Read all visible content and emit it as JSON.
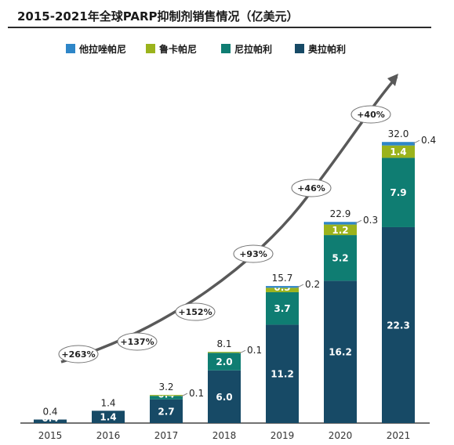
{
  "title": "2015-2021年全球PARP抑制剂销售情况（亿美元）",
  "legend": [
    {
      "label": "他拉唑帕尼",
      "color": "#2e86c8"
    },
    {
      "label": "鲁卡帕尼",
      "color": "#9bb31c"
    },
    {
      "label": "尼拉帕利",
      "color": "#0f7d72"
    },
    {
      "label": "奥拉帕利",
      "color": "#174a66"
    }
  ],
  "chart_data": {
    "type": "bar",
    "stacked": true,
    "categories": [
      "2015",
      "2016",
      "2017",
      "2018",
      "2019",
      "2020",
      "2021"
    ],
    "series": [
      {
        "name": "奥拉帕利",
        "color": "#174a66",
        "values": [
          0.4,
          1.4,
          2.7,
          6.0,
          11.2,
          16.2,
          22.3
        ]
      },
      {
        "name": "尼拉帕利",
        "color": "#0f7d72",
        "values": [
          0,
          0,
          0.4,
          2.0,
          3.7,
          5.2,
          7.9
        ]
      },
      {
        "name": "鲁卡帕尼",
        "color": "#9bb31c",
        "values": [
          0,
          0,
          0.1,
          0.1,
          0.5,
          1.2,
          1.4
        ]
      },
      {
        "name": "他拉唑帕尼",
        "color": "#2e86c8",
        "values": [
          0,
          0,
          0,
          0,
          0.2,
          0.3,
          0.4
        ]
      }
    ],
    "segment_labels": [
      [
        "0.4",
        null,
        null,
        null
      ],
      [
        "1.4",
        null,
        null,
        null
      ],
      [
        "2.7",
        "0.4",
        null,
        null
      ],
      [
        "6.0",
        "2.0",
        null,
        null
      ],
      [
        "11.2",
        "3.7",
        "0.5",
        null
      ],
      [
        "16.2",
        "5.2",
        "1.2",
        null
      ],
      [
        "22.3",
        "7.9",
        "1.4",
        null
      ]
    ],
    "side_labels": [
      "",
      "",
      "0.1",
      "0.1",
      "0.2",
      "0.3",
      "0.4"
    ],
    "totals": [
      "0.4",
      "1.4",
      "3.2",
      "8.1",
      "15.7",
      "22.9",
      "32.0"
    ],
    "growth_labels": [
      "+263%",
      "+137%",
      "+152%",
      "+93%",
      "+46%",
      "+40%"
    ],
    "ylim": [
      0,
      33
    ],
    "grid": false,
    "legend_position": "top"
  }
}
